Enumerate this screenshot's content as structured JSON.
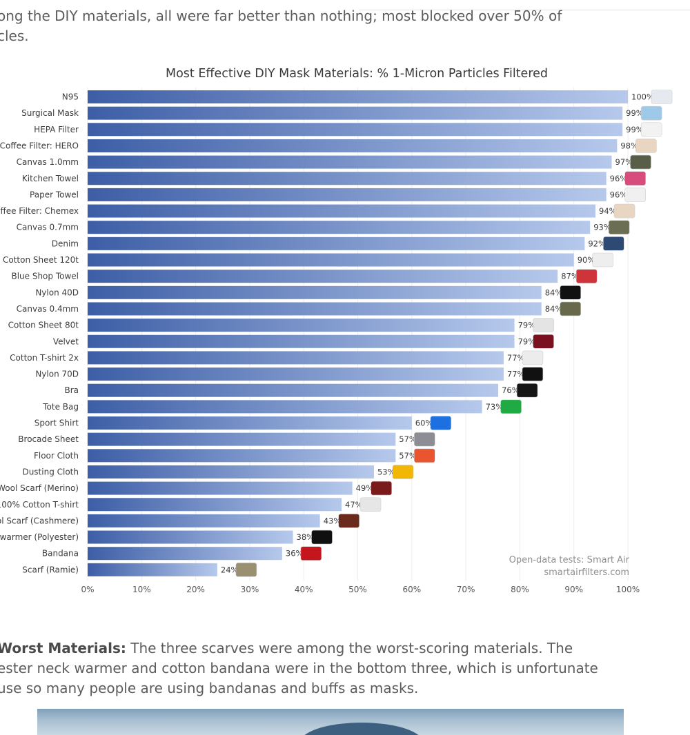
{
  "page": {
    "intro_line1": "ong the DIY materials, all were far better than nothing; most blocked over 50% of",
    "intro_line2": "cles.",
    "worst_heading": "Worst Materials:",
    "worst_line1_rest": " The three scarves were among the worst-scoring materials. The",
    "worst_line2": "ester neck warmer and cotton bandana were in the bottom three, which is unfortunate",
    "worst_line3": "use so many people are using bandanas and buffs as masks."
  },
  "chart_data": {
    "type": "bar",
    "orientation": "horizontal",
    "title": "Most Effective DIY Mask Materials: % 1-Micron Particles Filtered",
    "xlim": [
      0,
      100
    ],
    "x_ticks": [
      "0%",
      "10%",
      "20%",
      "30%",
      "40%",
      "50%",
      "60%",
      "70%",
      "80%",
      "90%",
      "100%"
    ],
    "grid": "vertical",
    "annotation": [
      "Open-data tests: Smart Air",
      "smartairfilters.com"
    ],
    "annotation_position": "bottom-right",
    "categories": [
      "N95",
      "Surgical Mask",
      "HEPA Filter",
      "Coffee Filter: HERO",
      "Canvas 1.0mm",
      "Kitchen Towel",
      "Paper Towel",
      "offee Filter: Chemex",
      "Canvas 0.7mm",
      "Denim",
      "Cotton Sheet 120t",
      "Blue Shop Towel",
      "Nylon 40D",
      "Canvas 0.4mm",
      "Cotton Sheet 80t",
      "Velvet",
      "Cotton T-shirt 2x",
      "Nylon 70D",
      "Bra",
      "Tote Bag",
      "Sport Shirt",
      "Brocade Sheet",
      "Floor Cloth",
      "Dusting Cloth",
      "Wool Scarf (Merino)",
      "100% Cotton T-shirt",
      "ol Scarf (Cashmere)",
      "kwarmer (Polyester)",
      "Bandana",
      "Scarf (Ramie)"
    ],
    "values": [
      100,
      99,
      99,
      98,
      97,
      96,
      96,
      94,
      93,
      92,
      90,
      87,
      84,
      84,
      79,
      79,
      77,
      77,
      76,
      73,
      60,
      57,
      57,
      53,
      49,
      47,
      43,
      38,
      36,
      24
    ],
    "value_labels": [
      "100%",
      "99%",
      "99%",
      "98%",
      "97%",
      "96%",
      "96%",
      "94%",
      "93%",
      "92%",
      "90%",
      "87%",
      "84%",
      "84%",
      "79%",
      "79%",
      "77%",
      "77%",
      "76%",
      "73%",
      "60%",
      "57%",
      "57%",
      "53%",
      "49%",
      "47%",
      "43%",
      "38%",
      "36%",
      "24%"
    ],
    "bar_gradient": [
      "#3d5ea6",
      "#b6c9ec"
    ],
    "icon_colors": [
      "#e6e9f0",
      "#9fc9e8",
      "#f2f2f2",
      "#e8d6c2",
      "#595e48",
      "#d84b7d",
      "#f0f0f0",
      "#e8d6c2",
      "#6b6e52",
      "#2d4a75",
      "#eeeeee",
      "#d0343b",
      "#111111",
      "#68684c",
      "#e4e4e4",
      "#7a1020",
      "#ececec",
      "#111111",
      "#151515",
      "#1faa44",
      "#1e6fe0",
      "#8d8d96",
      "#e8552f",
      "#f2b705",
      "#7a1a1a",
      "#e6e6e6",
      "#6a2a1c",
      "#101010",
      "#c4161c",
      "#9b8f72"
    ]
  }
}
